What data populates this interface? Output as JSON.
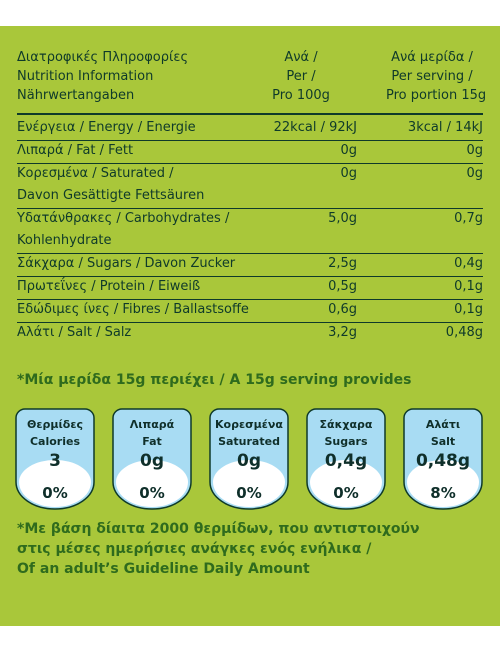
{
  "header": {
    "col1": [
      "Διατροφικές Πληροφορίες",
      "Nutrition Information",
      "Nährwertangaben"
    ],
    "col2": [
      "Ανά /",
      "Per /",
      "Pro 100g"
    ],
    "col3": [
      "Ανά μερίδα /",
      "Per serving /",
      "Pro portion 15g"
    ]
  },
  "rows": [
    {
      "label": "Ενέργεια / Energy / Energie",
      "per100": "22kcal / 92kJ",
      "serving": "3kcal / 14kJ"
    },
    {
      "label": "Λιπαρά / Fat / Fett",
      "per100": "0g",
      "serving": "0g"
    },
    {
      "label": "Κορεσμένα / Saturated /",
      "label2": "Davon Gesättigte Fettsäuren",
      "per100": "0g",
      "serving": "0g"
    },
    {
      "label": "Υδατάνθρακες / Carbohydrates /",
      "label2": "Kohlenhydrate",
      "per100": "5,0g",
      "serving": "0,7g"
    },
    {
      "label": "Σάκχαρα / Sugars / Davon Zucker",
      "per100": "2,5g",
      "serving": "0,4g"
    },
    {
      "label": "Πρωτεΐνες / Protein / Eiweiß",
      "per100": "0,5g",
      "serving": "0,1g"
    },
    {
      "label": "Εδώδιμες ίνες / Fibres / Ballastsoffe",
      "per100": "0,6g",
      "serving": "0,1g"
    },
    {
      "label": "Αλάτι / Salt / Salz",
      "per100": "3,2g",
      "serving": "0,48g"
    }
  ],
  "serving_note": "*Μία μερίδα 15g περιέχει / A 15g serving provides",
  "badges": [
    {
      "line1": "Θερμίδες",
      "line2": "Calories",
      "value": "3",
      "percent": "0%"
    },
    {
      "line1": "Λιπαρά",
      "line2": "Fat",
      "value": "0g",
      "percent": "0%"
    },
    {
      "line1": "Κορεσμένα",
      "line2": "Saturated",
      "value": "0g",
      "percent": "0%"
    },
    {
      "line1": "Σάκχαρα",
      "line2": "Sugars",
      "value": "0,4g",
      "percent": "0%"
    },
    {
      "line1": "Αλάτι",
      "line2": "Salt",
      "value": "0,48g",
      "percent": "8%"
    }
  ],
  "footnote": [
    "*Με βάση δίαιτα 2000 θερμίδων, που αντιστοιχούν",
    "στις μέσες ημερήσιες ανάγκες ενός ενήλικα /",
    "Of an adult’s Guideline Daily Amount"
  ],
  "colors": {
    "background": "#a9c73a",
    "text": "#0f3a2a",
    "accent_green": "#2f6b1d",
    "badge_blue": "#a8dcf3",
    "badge_pct": "#ffffff"
  }
}
